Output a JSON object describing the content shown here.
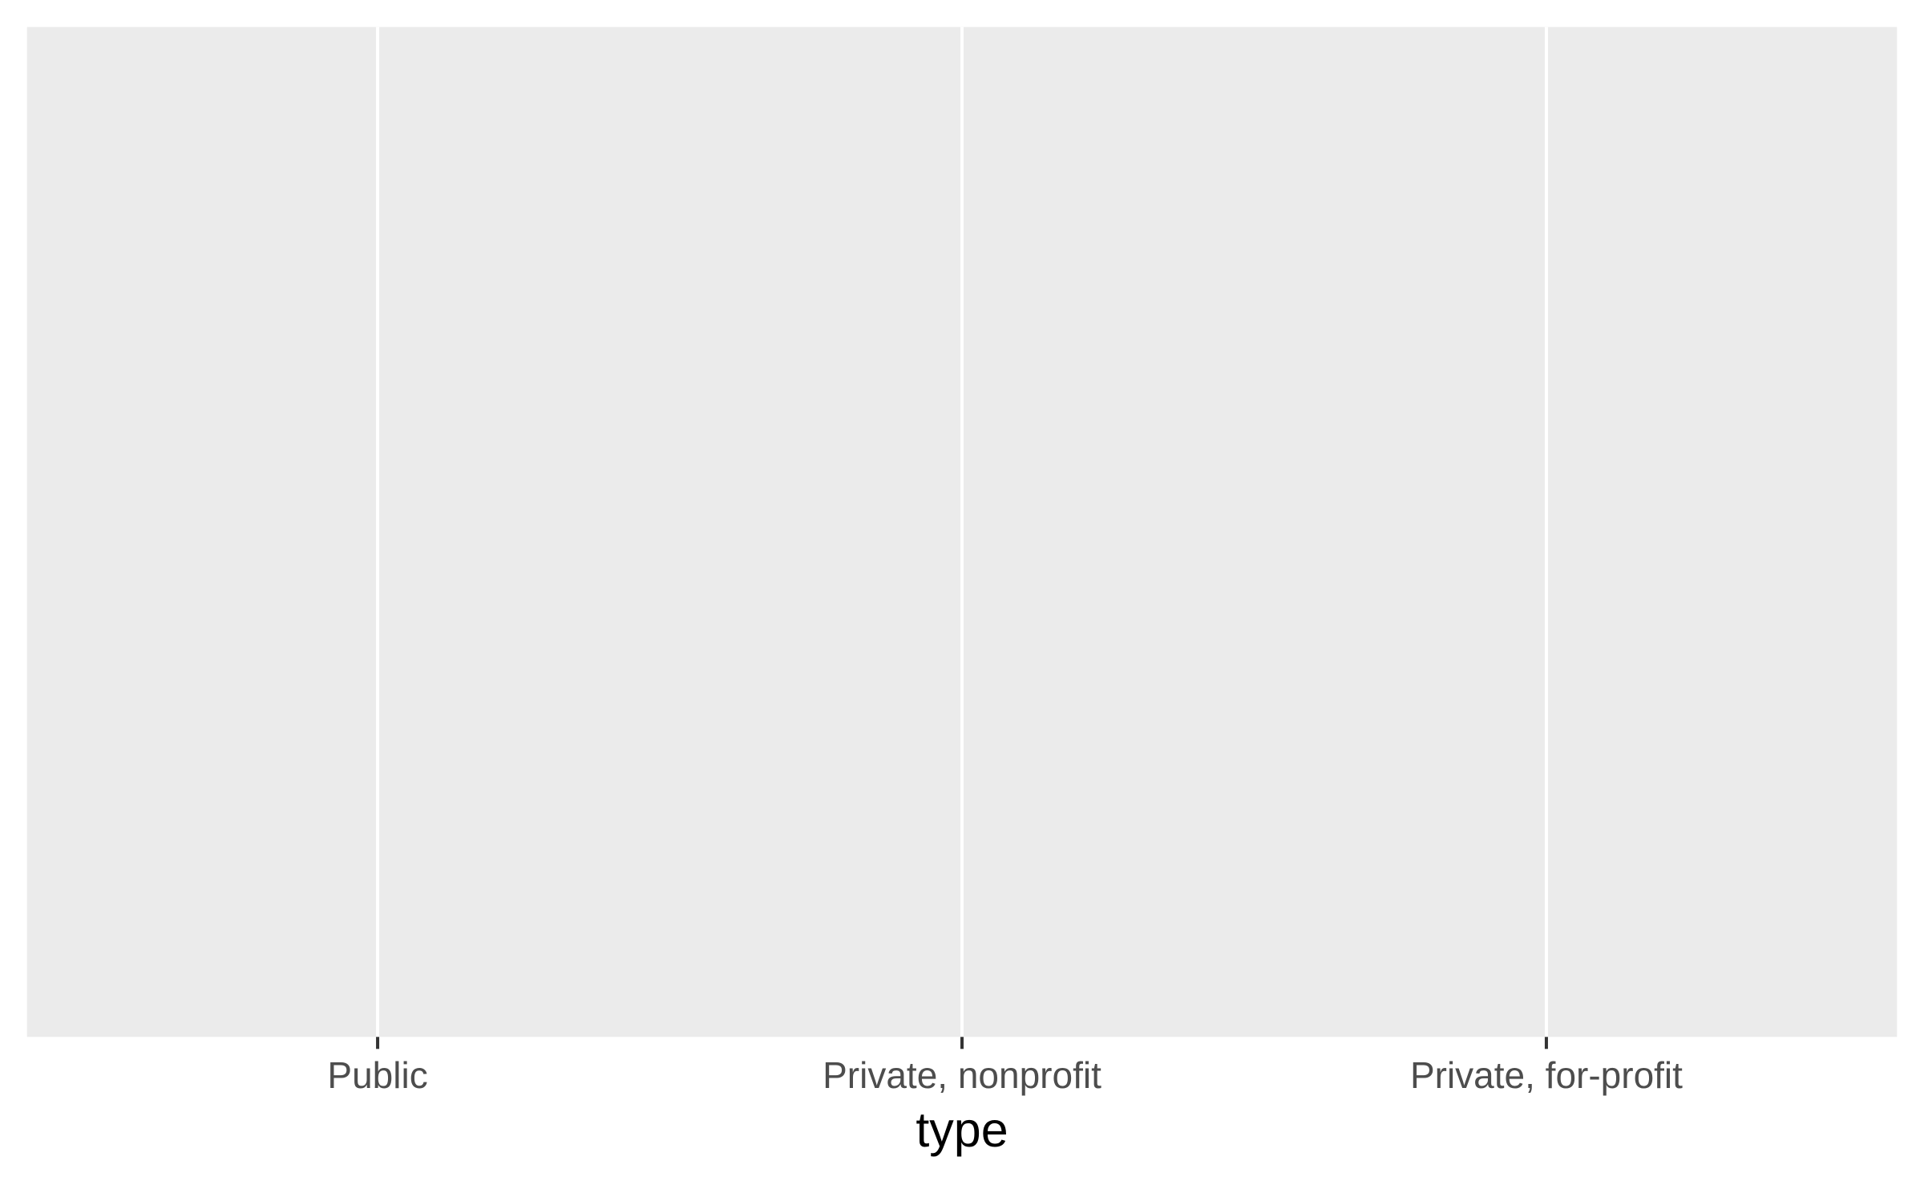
{
  "chart_data": {
    "type": "bar",
    "categories": [
      "Public",
      "Private, nonprofit",
      "Private, for-profit"
    ],
    "x_label": "type",
    "grid": true
  }
}
